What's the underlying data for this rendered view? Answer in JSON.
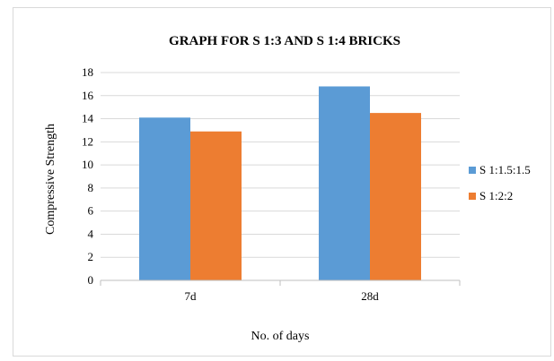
{
  "chart_data": {
    "type": "bar",
    "title": "GRAPH FOR S 1:3 AND S 1:4 BRICKS",
    "xlabel": "No. of days",
    "ylabel": "Compressive Strength",
    "categories": [
      "7d",
      "28d"
    ],
    "series": [
      {
        "name": "S 1:1.5:1.5",
        "values": [
          14.1,
          16.8
        ],
        "color": "#5b9bd5"
      },
      {
        "name": "S 1:2:2",
        "values": [
          12.9,
          14.5
        ],
        "color": "#ed7d31"
      }
    ],
    "ylim": [
      0,
      18
    ],
    "yticks": [
      0,
      2,
      4,
      6,
      8,
      10,
      12,
      14,
      16,
      18
    ],
    "grid": true,
    "legend_position": "right"
  }
}
